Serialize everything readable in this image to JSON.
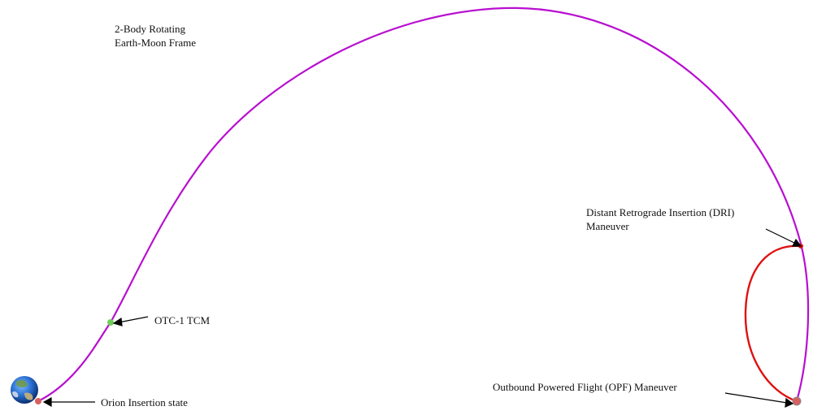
{
  "title": {
    "line1": "2-Body Rotating",
    "line2": "Earth-Moon Frame"
  },
  "annotations": {
    "dri_line1": "Distant Retrograde Insertion (DRI)",
    "dri_line2": "Maneuver",
    "otc": "OTC-1 TCM",
    "opf": "Outbound Powered Flight (OPF) Maneuver",
    "insertion": "Orion Insertion state"
  },
  "colors": {
    "trajectory": "#b80fd0",
    "dro": "#e01010",
    "otc_marker": "#6fcf5a",
    "maneuver_marker": "#d86060",
    "earth_ocean": "#2a6fd0",
    "earth_land": "#6f9a4a"
  },
  "icons": {
    "earth": "earth-icon"
  }
}
